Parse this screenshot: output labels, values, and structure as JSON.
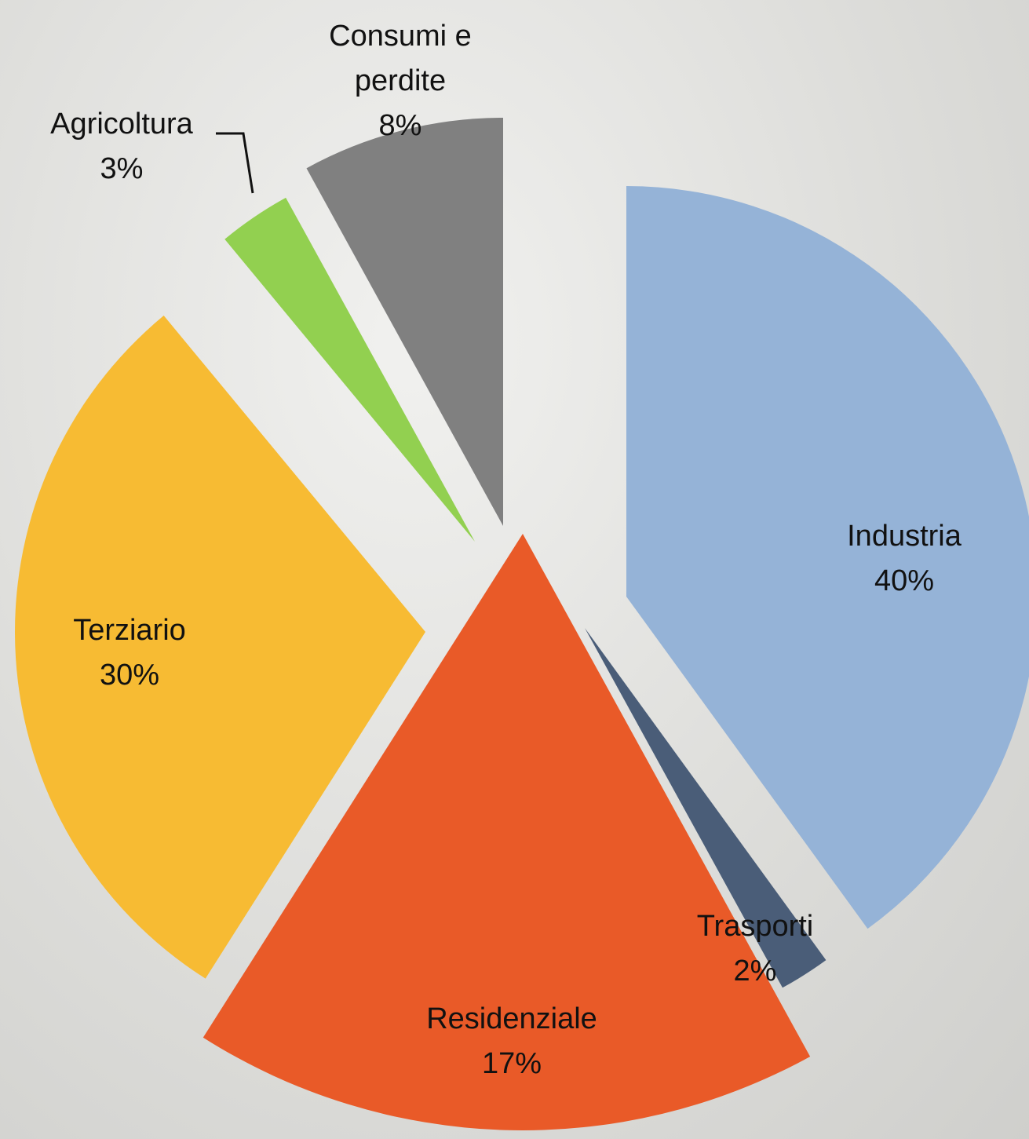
{
  "chart_data": {
    "type": "pie",
    "categories": [
      "Industria",
      "Trasporti",
      "Residenziale",
      "Terziario",
      "Agricoltura",
      "Consumi e perdite"
    ],
    "values": [
      40,
      2,
      17,
      30,
      3,
      8
    ],
    "value_labels": [
      "40%",
      "2%",
      "17%",
      "30%",
      "3%",
      "8%"
    ],
    "colors": [
      "#95b3d7",
      "#4a5d78",
      "#e95a28",
      "#f7bb33",
      "#92d050",
      "#808080"
    ]
  }
}
